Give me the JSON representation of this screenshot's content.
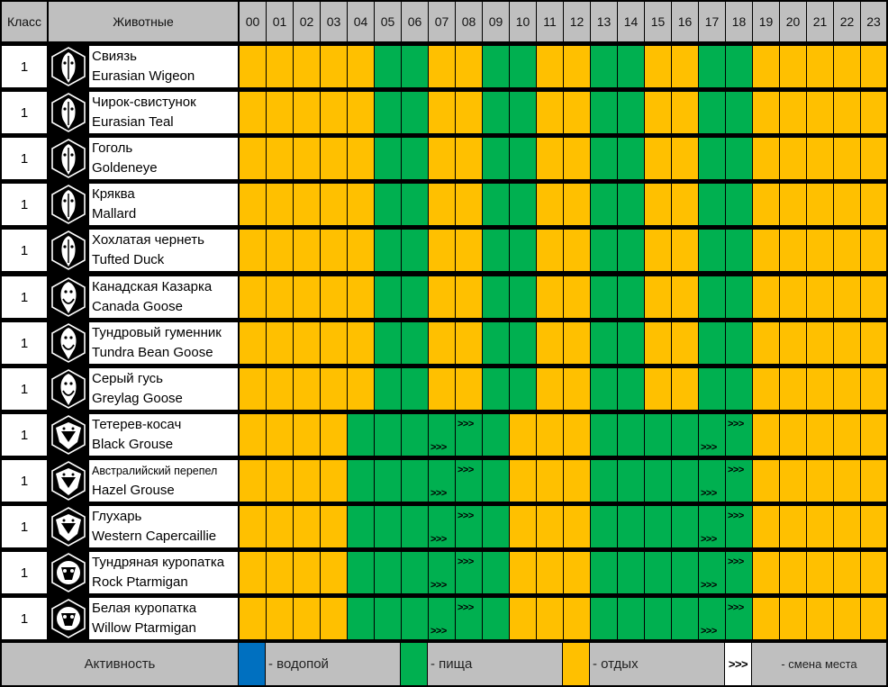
{
  "header": {
    "class_label": "Класс",
    "animals_label": "Животные",
    "hours": [
      "00",
      "01",
      "02",
      "03",
      "04",
      "05",
      "06",
      "07",
      "08",
      "09",
      "10",
      "11",
      "12",
      "13",
      "14",
      "15",
      "16",
      "17",
      "18",
      "19",
      "20",
      "21",
      "22",
      "23"
    ]
  },
  "colors": {
    "rest": "#FFC000",
    "food": "#00B050",
    "water": "#0070C0",
    "header_bg": "#BFBFBF",
    "grid": "#000000"
  },
  "animals": [
    {
      "class": "1",
      "ru": "Свиязь",
      "en": "Eurasian Wigeon",
      "icon": "duck-head-icon",
      "schedule": "rrrrrffrrffrrffrrffrrrrr",
      "move": {}
    },
    {
      "class": "1",
      "ru": "Чирок-свистунок",
      "en": "Eurasian Teal",
      "icon": "duck-head-icon",
      "schedule": "rrrrrffrrffrrffrrffrrrrr",
      "move": {}
    },
    {
      "class": "1",
      "ru": "Гоголь",
      "en": "Goldeneye",
      "icon": "duck-head-icon",
      "schedule": "rrrrrffrrffrrffrrffrrrrr",
      "move": {}
    },
    {
      "class": "1",
      "ru": "Кряква",
      "en": "Mallard",
      "icon": "duck-head-icon",
      "schedule": "rrrrrffrrffrrffrrffrrrrr",
      "move": {}
    },
    {
      "class": "1",
      "ru": "Хохлатая чернеть",
      "en": "Tufted Duck",
      "icon": "duck-head-icon",
      "schedule": "rrrrrffrrffrrffrrffrrrrr",
      "move": {}
    },
    {
      "class": "1",
      "ru": "Канадская Казарка",
      "en": "Canada Goose",
      "icon": "goose-head-icon",
      "schedule": "rrrrrffrrffrrffrrffrrrrr",
      "move": {}
    },
    {
      "class": "1",
      "ru": "Тундровый гуменник",
      "en": "Tundra Bean Goose",
      "icon": "goose-head-icon",
      "schedule": "rrrrrffrrffrrffrrffrrrrr",
      "move": {}
    },
    {
      "class": "1",
      "ru": "Серый гусь",
      "en": "Greylag Goose",
      "icon": "goose-head-icon",
      "schedule": "rrrrrffrrffrrffrrffrrrrr",
      "move": {}
    },
    {
      "class": "1",
      "ru": "Тетерев-косач",
      "en": "Black Grouse",
      "icon": "grouse-head-icon",
      "schedule": "rrrrffffffrrrffffffrrrrr",
      "move": {
        "7": "bottom",
        "8": "top",
        "17": "bottom",
        "18": "top"
      }
    },
    {
      "class": "1",
      "ru": "Австралийский перепел",
      "en": "Hazel Grouse",
      "icon": "grouse-head-icon",
      "small": true,
      "schedule": "rrrrffffffrrrffffffrrrrr",
      "move": {
        "7": "bottom",
        "8": "top",
        "17": "bottom",
        "18": "top"
      }
    },
    {
      "class": "1",
      "ru": "Глухарь",
      "en": "Western Capercaillie",
      "icon": "grouse-head-icon",
      "schedule": "rrrrffffffrrrffffffrrrrr",
      "move": {
        "7": "bottom",
        "8": "top",
        "17": "bottom",
        "18": "top"
      }
    },
    {
      "class": "1",
      "ru": "Тундряная куропатка",
      "en": "Rock Ptarmigan",
      "icon": "ptarmigan-head-icon",
      "schedule": "rrrrffffffrrrffffffrrrrr",
      "move": {
        "7": "bottom",
        "8": "top",
        "17": "bottom",
        "18": "top"
      }
    },
    {
      "class": "1",
      "ru": "Белая куропатка",
      "en": "Willow Ptarmigan",
      "icon": "ptarmigan-head-icon",
      "schedule": "rrrrffffffrrrffffffrrrrr",
      "move": {
        "7": "bottom",
        "8": "top",
        "17": "bottom",
        "18": "top"
      }
    }
  ],
  "move_marker": ">>>",
  "legend": {
    "title": "Активность",
    "water": "- водопой",
    "food": "- пища",
    "rest": "- отдых",
    "move_symbol": ">>>",
    "move": "- смена места"
  }
}
